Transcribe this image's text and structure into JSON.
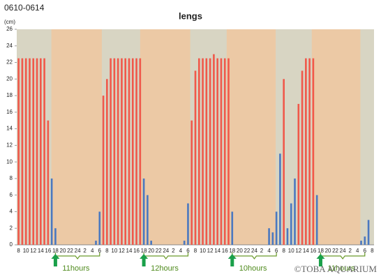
{
  "chart_data": {
    "type": "bar",
    "title": "lengs",
    "corner_label": "0610-0614",
    "y_label": "(cm)",
    "watermark": "©TOBA AQUARIUM",
    "categories": [
      "8",
      null,
      "10",
      null,
      "12",
      null,
      "14",
      null,
      "16",
      null,
      "18",
      null,
      "20",
      null,
      "22",
      null,
      "24",
      null,
      "2",
      null,
      "4",
      null,
      "6",
      null,
      "8",
      null,
      "10",
      null,
      "12",
      null,
      "14",
      null,
      "16",
      null,
      "18",
      null,
      "20",
      null,
      "22",
      null,
      "24",
      null,
      "2",
      null,
      "4",
      null,
      "6",
      null,
      "8",
      null,
      "10",
      null,
      "12",
      null,
      "14",
      null,
      "16",
      null,
      "18",
      null,
      "20",
      null,
      "22",
      null,
      "24",
      null,
      "2",
      null,
      "4",
      null,
      "6",
      null,
      "8",
      null,
      "10",
      null,
      "12",
      null,
      "14",
      null,
      "16",
      null,
      "18",
      null,
      "20",
      null,
      "22",
      null,
      "24",
      null,
      "2",
      null,
      "4",
      null,
      "6",
      null,
      "8"
    ],
    "series": [
      {
        "color": "#f0584a",
        "values": [
          22.5,
          22.5,
          22.5,
          22.5,
          22.5,
          22.5,
          22.5,
          22.5,
          15,
          null,
          null,
          null,
          null,
          null,
          null,
          null,
          null,
          null,
          null,
          null,
          null,
          null,
          null,
          18,
          20,
          22.5,
          22.5,
          22.5,
          22.5,
          22.5,
          22.5,
          22.5,
          22.5,
          22.5,
          null,
          null,
          null,
          null,
          null,
          null,
          null,
          null,
          null,
          null,
          null,
          null,
          null,
          15,
          21,
          22.5,
          22.5,
          22.5,
          22.5,
          23,
          22.5,
          22.5,
          22.5,
          22.5,
          null,
          null,
          null,
          null,
          null,
          null,
          null,
          null,
          null,
          null,
          null,
          null,
          null,
          null,
          20,
          null,
          null,
          null,
          17,
          21,
          22.5,
          22.5,
          22.5,
          null,
          null,
          null,
          null,
          null,
          null,
          null,
          null,
          null,
          null,
          null,
          null,
          null,
          null,
          null,
          null
        ]
      },
      {
        "color": "#4a78c0",
        "values": [
          null,
          null,
          null,
          null,
          null,
          null,
          null,
          null,
          null,
          8,
          2,
          null,
          null,
          null,
          null,
          null,
          null,
          null,
          null,
          null,
          null,
          0.5,
          4,
          null,
          null,
          null,
          null,
          null,
          null,
          null,
          null,
          null,
          null,
          null,
          8,
          6,
          0.5,
          null,
          null,
          null,
          null,
          null,
          null,
          null,
          null,
          0.5,
          5,
          null,
          null,
          null,
          null,
          null,
          null,
          null,
          null,
          null,
          null,
          null,
          4,
          null,
          null,
          null,
          null,
          null,
          null,
          null,
          null,
          null,
          2,
          1.5,
          4,
          11,
          null,
          2,
          5,
          8,
          null,
          null,
          null,
          null,
          null,
          6,
          null,
          null,
          null,
          null,
          null,
          null,
          null,
          null,
          null,
          null,
          null,
          0.5,
          1,
          3,
          null
        ]
      }
    ],
    "ylim": [
      0,
      26
    ],
    "yticks": [
      0,
      2,
      4,
      6,
      8,
      10,
      12,
      14,
      16,
      18,
      20,
      22,
      24,
      26
    ],
    "grid": false,
    "day_color": "#d8d5c3",
    "night_color": "#ecc9a5",
    "night_periods": [
      [
        8.9,
        22.6
      ],
      [
        33,
        46.6
      ],
      [
        56.5,
        69.8
      ],
      [
        79.6,
        92.8
      ]
    ],
    "annotations": [
      {
        "text": "11hours",
        "arrow": 10,
        "brace": [
          10,
          22
        ]
      },
      {
        "text": "12hours",
        "arrow": 34,
        "brace": [
          34,
          46
        ]
      },
      {
        "text": "10hours",
        "arrow": 58,
        "brace": [
          58,
          70
        ]
      },
      {
        "text": "11hours",
        "arrow": 82,
        "brace": [
          82,
          94
        ]
      }
    ],
    "annotation_color": "#6a9a2a",
    "arrow_color": "#1aa04a"
  }
}
